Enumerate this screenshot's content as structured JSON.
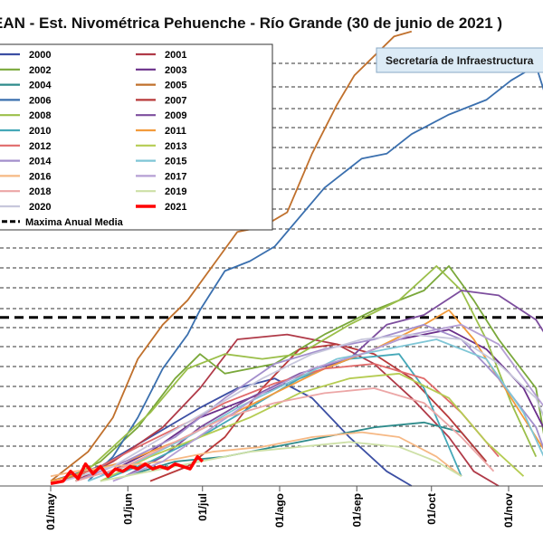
{
  "chart_data": {
    "type": "line",
    "title": "EAN - Est. Nivométrica Pehuenche - Río Grande (30 de junio de 2021 )",
    "annotation": "Secretaría de Infraestructura",
    "x_axis": {
      "ticks": [
        {
          "label": "01/may",
          "day": 0
        },
        {
          "label": "01/jun",
          "day": 31
        },
        {
          "label": "01/jul",
          "day": 61
        },
        {
          "label": "01/ago",
          "day": 92
        },
        {
          "label": "01/sep",
          "day": 123
        },
        {
          "label": "01/oct",
          "day": 153
        },
        {
          "label": "01/nov",
          "day": 184
        }
      ],
      "range": [
        "01/may",
        "~10/nov"
      ]
    },
    "y_axis": {
      "ticks": "none printed",
      "grid": "dashed horizontal"
    },
    "reference_line": {
      "name": "Maxima Anual Media",
      "y": 0.345,
      "style": "thick dashed black"
    },
    "legend_placement": "top-left",
    "series": [
      {
        "name": "2000",
        "color": "#3b4ea3",
        "points": [
          [
            0,
            0.01
          ],
          [
            20,
            0.04
          ],
          [
            40,
            0.1
          ],
          [
            60,
            0.16
          ],
          [
            75,
            0.2
          ],
          [
            90,
            0.22
          ],
          [
            105,
            0.18
          ],
          [
            120,
            0.1
          ],
          [
            135,
            0.03
          ],
          [
            145,
            0
          ]
        ]
      },
      {
        "name": "2001",
        "color": "#b03a48",
        "points": [
          [
            10,
            0.01
          ],
          [
            25,
            0.05
          ],
          [
            45,
            0.12
          ],
          [
            60,
            0.2
          ],
          [
            75,
            0.3
          ],
          [
            95,
            0.31
          ],
          [
            115,
            0.29
          ],
          [
            130,
            0.25
          ],
          [
            145,
            0.18
          ],
          [
            160,
            0.1
          ],
          [
            170,
            0.03
          ],
          [
            180,
            0
          ]
        ]
      },
      {
        "name": "2002",
        "color": "#7aa83a",
        "points": [
          [
            5,
            0.01
          ],
          [
            20,
            0.05
          ],
          [
            35,
            0.12
          ],
          [
            50,
            0.22
          ],
          [
            60,
            0.27
          ],
          [
            70,
            0.23
          ],
          [
            90,
            0.25
          ],
          [
            110,
            0.31
          ],
          [
            130,
            0.36
          ],
          [
            150,
            0.4
          ],
          [
            160,
            0.45
          ],
          [
            170,
            0.38
          ],
          [
            180,
            0.3
          ],
          [
            195,
            0.2
          ],
          [
            200,
            0.05
          ]
        ]
      },
      {
        "name": "2003",
        "color": "#6a2f8a",
        "points": [
          [
            20,
            0.02
          ],
          [
            40,
            0.07
          ],
          [
            60,
            0.14
          ],
          [
            80,
            0.18
          ],
          [
            100,
            0.22
          ],
          [
            120,
            0.26
          ],
          [
            140,
            0.3
          ],
          [
            160,
            0.32
          ],
          [
            175,
            0.28
          ],
          [
            190,
            0.2
          ],
          [
            200,
            0.1
          ]
        ]
      },
      {
        "name": "2004",
        "color": "#2e8b8b",
        "points": [
          [
            30,
            0.02
          ],
          [
            50,
            0.05
          ],
          [
            70,
            0.06
          ],
          [
            90,
            0.08
          ],
          [
            110,
            0.1
          ],
          [
            130,
            0.12
          ],
          [
            150,
            0.13
          ],
          [
            165,
            0.11
          ],
          [
            175,
            0.05
          ]
        ]
      },
      {
        "name": "2005",
        "color": "#c0702c",
        "points": [
          [
            0,
            0.01
          ],
          [
            15,
            0.07
          ],
          [
            25,
            0.14
          ],
          [
            35,
            0.26
          ],
          [
            45,
            0.33
          ],
          [
            55,
            0.38
          ],
          [
            65,
            0.45
          ],
          [
            75,
            0.52
          ],
          [
            85,
            0.53
          ],
          [
            95,
            0.56
          ],
          [
            105,
            0.68
          ],
          [
            115,
            0.78
          ],
          [
            122,
            0.84
          ],
          [
            130,
            0.88
          ],
          [
            138,
            0.92
          ],
          [
            145,
            0.93
          ]
        ]
      },
      {
        "name": "2006",
        "color": "#3a6fae",
        "points": [
          [
            15,
            0.01
          ],
          [
            25,
            0.06
          ],
          [
            35,
            0.14
          ],
          [
            45,
            0.24
          ],
          [
            55,
            0.31
          ],
          [
            60,
            0.36
          ],
          [
            70,
            0.44
          ],
          [
            80,
            0.46
          ],
          [
            90,
            0.49
          ],
          [
            110,
            0.61
          ],
          [
            125,
            0.67
          ],
          [
            135,
            0.68
          ],
          [
            145,
            0.72
          ],
          [
            160,
            0.76
          ],
          [
            175,
            0.79
          ],
          [
            185,
            0.83
          ],
          [
            195,
            0.86
          ],
          [
            200,
            0.78
          ]
        ]
      },
      {
        "name": "2007",
        "color": "#b8393a",
        "points": [
          [
            40,
            0.01
          ],
          [
            55,
            0.04
          ],
          [
            70,
            0.1
          ],
          [
            85,
            0.2
          ],
          [
            100,
            0.28
          ],
          [
            115,
            0.29
          ],
          [
            130,
            0.27
          ],
          [
            145,
            0.22
          ],
          [
            160,
            0.14
          ],
          [
            175,
            0.05
          ]
        ]
      },
      {
        "name": "2008",
        "color": "#9bbf4a",
        "points": [
          [
            10,
            0.01
          ],
          [
            25,
            0.08
          ],
          [
            40,
            0.15
          ],
          [
            55,
            0.24
          ],
          [
            70,
            0.27
          ],
          [
            85,
            0.26
          ],
          [
            100,
            0.27
          ],
          [
            120,
            0.33
          ],
          [
            140,
            0.38
          ],
          [
            155,
            0.45
          ],
          [
            165,
            0.4
          ],
          [
            175,
            0.3
          ],
          [
            185,
            0.17
          ],
          [
            195,
            0.06
          ]
        ]
      },
      {
        "name": "2009",
        "color": "#7d4e9e",
        "points": [
          [
            30,
            0.02
          ],
          [
            45,
            0.06
          ],
          [
            60,
            0.12
          ],
          [
            80,
            0.18
          ],
          [
            100,
            0.23
          ],
          [
            120,
            0.26
          ],
          [
            135,
            0.33
          ],
          [
            150,
            0.35
          ],
          [
            165,
            0.4
          ],
          [
            180,
            0.39
          ],
          [
            195,
            0.34
          ],
          [
            200,
            0.3
          ]
        ]
      },
      {
        "name": "2010",
        "color": "#45a8b8",
        "points": [
          [
            20,
            0.01
          ],
          [
            40,
            0.05
          ],
          [
            60,
            0.1
          ],
          [
            80,
            0.16
          ],
          [
            100,
            0.22
          ],
          [
            120,
            0.26
          ],
          [
            140,
            0.27
          ],
          [
            150,
            0.2
          ],
          [
            160,
            0.08
          ],
          [
            165,
            0.02
          ]
        ]
      },
      {
        "name": "2011",
        "color": "#f29b3c",
        "points": [
          [
            0,
            0.01
          ],
          [
            15,
            0.03
          ],
          [
            30,
            0.05
          ],
          [
            50,
            0.09
          ],
          [
            70,
            0.14
          ],
          [
            90,
            0.19
          ],
          [
            110,
            0.24
          ],
          [
            130,
            0.28
          ],
          [
            150,
            0.33
          ],
          [
            160,
            0.36
          ],
          [
            170,
            0.3
          ],
          [
            185,
            0.18
          ],
          [
            200,
            0.06
          ]
        ]
      },
      {
        "name": "2012",
        "color": "#e06a6a",
        "points": [
          [
            5,
            0.01
          ],
          [
            20,
            0.04
          ],
          [
            35,
            0.08
          ],
          [
            55,
            0.13
          ],
          [
            70,
            0.17
          ],
          [
            90,
            0.21
          ],
          [
            110,
            0.24
          ],
          [
            130,
            0.25
          ],
          [
            150,
            0.22
          ],
          [
            165,
            0.15
          ],
          [
            180,
            0.06
          ]
        ]
      },
      {
        "name": "2013",
        "color": "#b5cc52",
        "points": [
          [
            20,
            0.01
          ],
          [
            40,
            0.06
          ],
          [
            60,
            0.1
          ],
          [
            80,
            0.14
          ],
          [
            100,
            0.19
          ],
          [
            120,
            0.22
          ],
          [
            140,
            0.23
          ],
          [
            160,
            0.18
          ],
          [
            175,
            0.09
          ],
          [
            190,
            0.02
          ]
        ]
      },
      {
        "name": "2014",
        "color": "#a38fcc",
        "points": [
          [
            10,
            0.01
          ],
          [
            30,
            0.05
          ],
          [
            50,
            0.1
          ],
          [
            70,
            0.18
          ],
          [
            90,
            0.25
          ],
          [
            110,
            0.28
          ],
          [
            130,
            0.3
          ],
          [
            150,
            0.33
          ],
          [
            165,
            0.3
          ],
          [
            180,
            0.22
          ],
          [
            195,
            0.12
          ],
          [
            200,
            0.05
          ]
        ]
      },
      {
        "name": "2015",
        "color": "#7fc6d6",
        "points": [
          [
            15,
            0.01
          ],
          [
            35,
            0.05
          ],
          [
            55,
            0.1
          ],
          [
            75,
            0.16
          ],
          [
            95,
            0.21
          ],
          [
            115,
            0.26
          ],
          [
            135,
            0.28
          ],
          [
            155,
            0.3
          ],
          [
            175,
            0.26
          ],
          [
            190,
            0.15
          ],
          [
            200,
            0.04
          ]
        ]
      },
      {
        "name": "2016",
        "color": "#f6b884",
        "points": [
          [
            0,
            0.02
          ],
          [
            10,
            0.03
          ],
          [
            25,
            0.04
          ],
          [
            45,
            0.05
          ],
          [
            65,
            0.07
          ],
          [
            85,
            0.08
          ],
          [
            105,
            0.1
          ],
          [
            125,
            0.11
          ],
          [
            140,
            0.1
          ],
          [
            155,
            0.06
          ],
          [
            165,
            0.02
          ]
        ]
      },
      {
        "name": "2017",
        "color": "#b59fd4",
        "points": [
          [
            25,
            0.01
          ],
          [
            45,
            0.05
          ],
          [
            65,
            0.12
          ],
          [
            85,
            0.19
          ],
          [
            105,
            0.24
          ],
          [
            125,
            0.27
          ],
          [
            145,
            0.31
          ],
          [
            165,
            0.33
          ],
          [
            180,
            0.29
          ],
          [
            190,
            0.22
          ],
          [
            200,
            0.15
          ]
        ]
      },
      {
        "name": "2018",
        "color": "#eca6a6",
        "points": [
          [
            10,
            0.01
          ],
          [
            30,
            0.04
          ],
          [
            50,
            0.09
          ],
          [
            70,
            0.14
          ],
          [
            90,
            0.17
          ],
          [
            110,
            0.19
          ],
          [
            130,
            0.2
          ],
          [
            150,
            0.17
          ],
          [
            165,
            0.1
          ],
          [
            178,
            0.03
          ]
        ]
      },
      {
        "name": "2019",
        "color": "#cde0a6",
        "points": [
          [
            20,
            0.01
          ],
          [
            40,
            0.03
          ],
          [
            60,
            0.05
          ],
          [
            80,
            0.07
          ],
          [
            100,
            0.08
          ],
          [
            120,
            0.09
          ],
          [
            140,
            0.08
          ],
          [
            155,
            0.05
          ],
          [
            165,
            0.02
          ]
        ]
      },
      {
        "name": "2020",
        "color": "#c7c7dc",
        "points": [
          [
            5,
            0.01
          ],
          [
            25,
            0.04
          ],
          [
            45,
            0.1
          ],
          [
            65,
            0.16
          ],
          [
            85,
            0.22
          ],
          [
            105,
            0.27
          ],
          [
            125,
            0.3
          ],
          [
            145,
            0.31
          ],
          [
            165,
            0.3
          ],
          [
            180,
            0.25
          ],
          [
            195,
            0.18
          ],
          [
            200,
            0.12
          ]
        ]
      },
      {
        "name": "2021",
        "color": "#ff0000",
        "points": [
          [
            0,
            0.005
          ],
          [
            5,
            0.01
          ],
          [
            8,
            0.03
          ],
          [
            11,
            0.015
          ],
          [
            14,
            0.045
          ],
          [
            17,
            0.025
          ],
          [
            20,
            0.04
          ],
          [
            23,
            0.02
          ],
          [
            26,
            0.035
          ],
          [
            29,
            0.03
          ],
          [
            32,
            0.04
          ],
          [
            35,
            0.035
          ],
          [
            38,
            0.045
          ],
          [
            41,
            0.035
          ],
          [
            44,
            0.04
          ],
          [
            47,
            0.035
          ],
          [
            50,
            0.045
          ],
          [
            53,
            0.04
          ],
          [
            56,
            0.035
          ],
          [
            59,
            0.06
          ],
          [
            61,
            0.05
          ]
        ]
      }
    ]
  }
}
